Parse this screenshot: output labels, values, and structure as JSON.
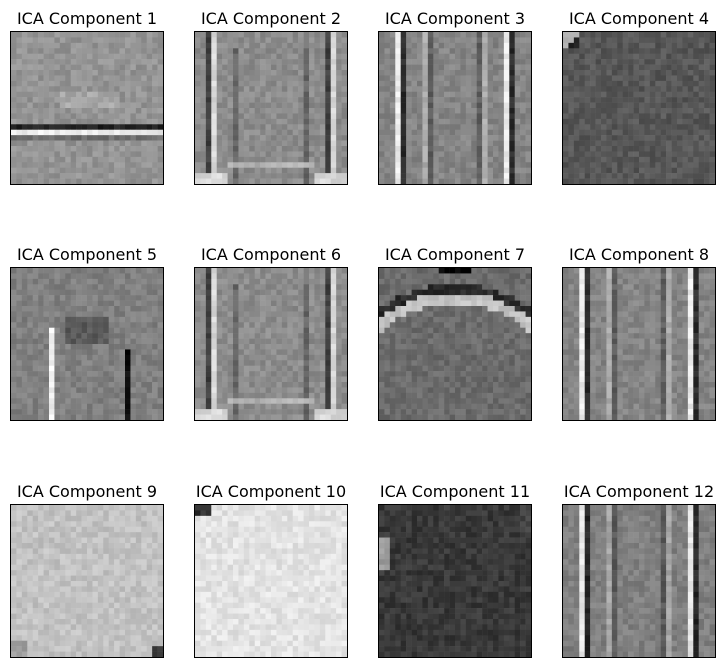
{
  "chart_data": [
    {
      "type": "heatmap",
      "title": "ICA Component 1",
      "colormap": "gray",
      "axes_visible": false,
      "base": 0.58,
      "pattern": "horizontal-stripes"
    },
    {
      "type": "heatmap",
      "title": "ICA Component 2",
      "colormap": "gray",
      "axes_visible": false,
      "base": 0.55,
      "pattern": "shirt-outline"
    },
    {
      "type": "heatmap",
      "title": "ICA Component 3",
      "colormap": "gray",
      "axes_visible": false,
      "base": 0.52,
      "pattern": "vertical-stripes"
    },
    {
      "type": "heatmap",
      "title": "ICA Component 4",
      "colormap": "gray",
      "axes_visible": false,
      "base": 0.34,
      "pattern": "dark-uniform"
    },
    {
      "type": "heatmap",
      "title": "ICA Component 5",
      "colormap": "gray",
      "axes_visible": false,
      "base": 0.5,
      "pattern": "blotchy-vertical"
    },
    {
      "type": "heatmap",
      "title": "ICA Component 6",
      "colormap": "gray",
      "axes_visible": false,
      "base": 0.55,
      "pattern": "shirt-outline"
    },
    {
      "type": "heatmap",
      "title": "ICA Component 7",
      "colormap": "gray",
      "axes_visible": false,
      "base": 0.42,
      "pattern": "arcs"
    },
    {
      "type": "heatmap",
      "title": "ICA Component 8",
      "colormap": "gray",
      "axes_visible": false,
      "base": 0.52,
      "pattern": "vertical-stripes"
    },
    {
      "type": "heatmap",
      "title": "ICA Component 9",
      "colormap": "gray",
      "axes_visible": false,
      "base": 0.76,
      "pattern": "light-uniform"
    },
    {
      "type": "heatmap",
      "title": "ICA Component 10",
      "colormap": "gray",
      "axes_visible": false,
      "base": 0.89,
      "pattern": "very-light"
    },
    {
      "type": "heatmap",
      "title": "ICA Component 11",
      "colormap": "gray",
      "axes_visible": false,
      "base": 0.22,
      "pattern": "very-dark"
    },
    {
      "type": "heatmap",
      "title": "ICA Component 12",
      "colormap": "gray",
      "axes_visible": false,
      "base": 0.5,
      "pattern": "vertical-stripes"
    }
  ]
}
